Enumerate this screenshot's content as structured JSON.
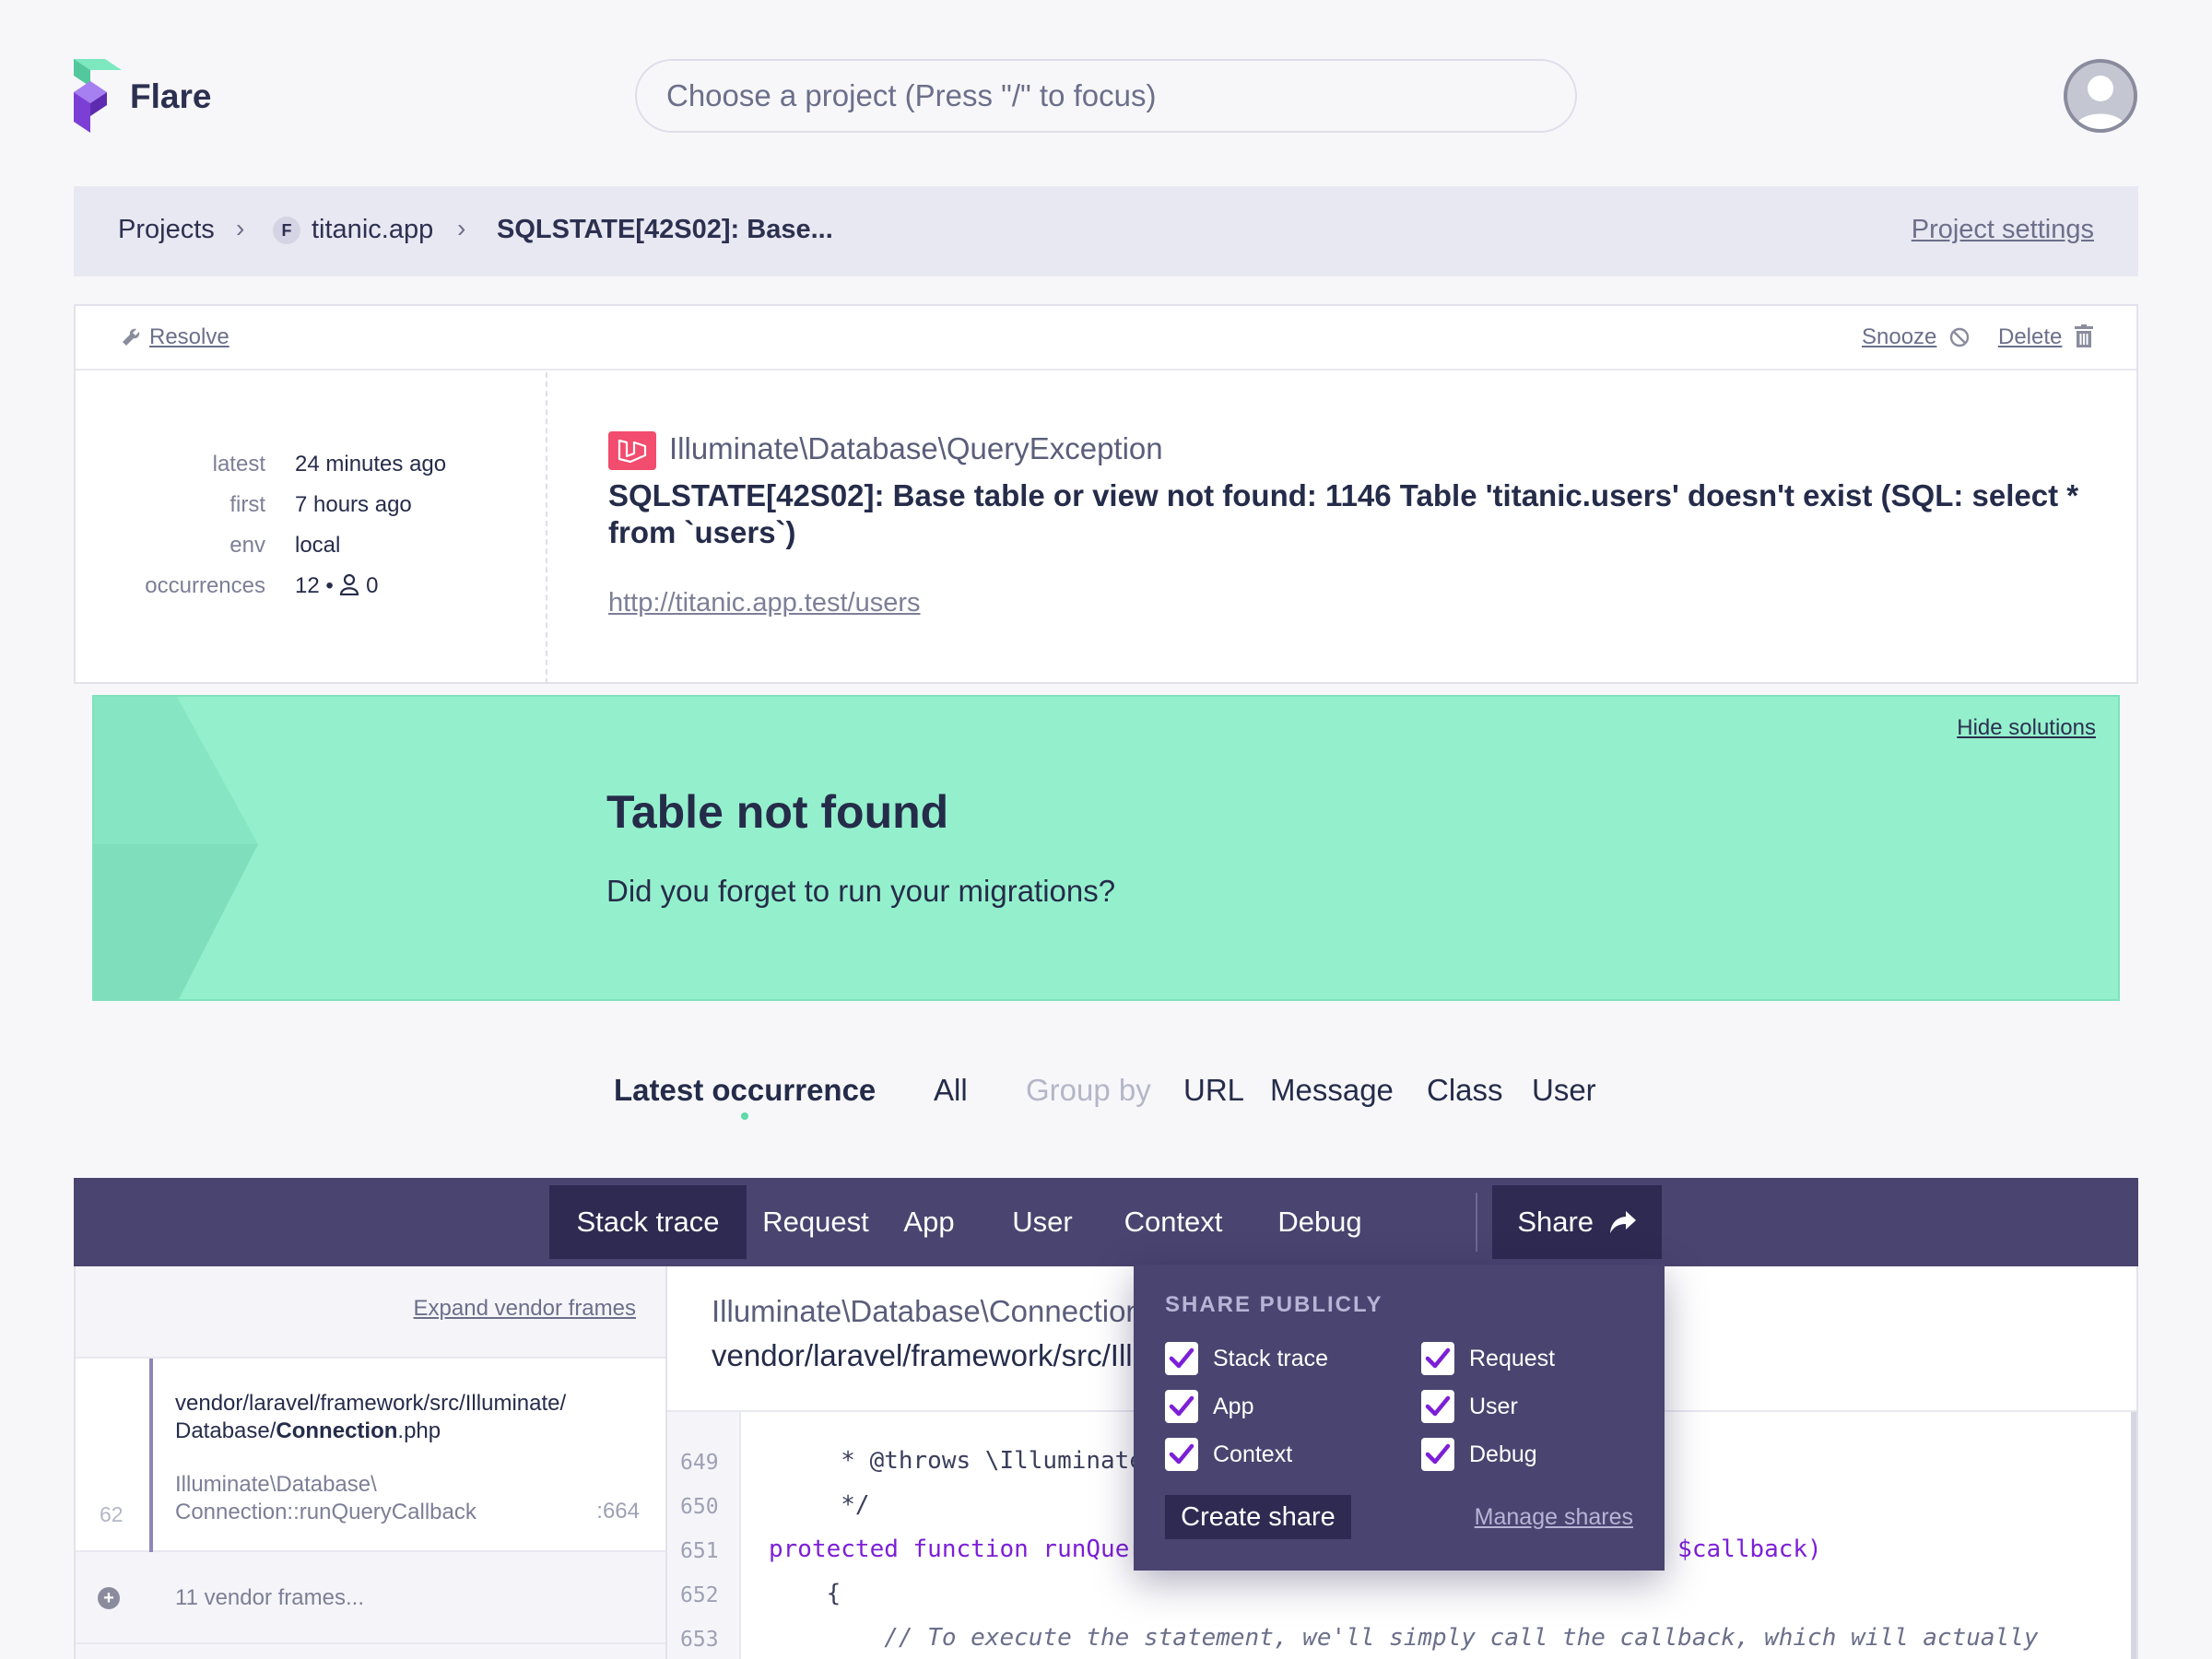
{
  "app": {
    "name": "Flare"
  },
  "search": {
    "placeholder": "Choose a project (Press \"/\" to focus)"
  },
  "breadcrumb": {
    "projects": "Projects",
    "project_badge": "F",
    "project": "titanic.app",
    "error": "SQLSTATE[42S02]: Base...",
    "settings": "Project settings"
  },
  "actions": {
    "resolve": "Resolve",
    "snooze": "Snooze",
    "delete": "Delete"
  },
  "meta": {
    "latest_label": "latest",
    "latest": "24 minutes ago",
    "first_label": "first",
    "first": "7 hours ago",
    "env_label": "env",
    "env": "local",
    "occurrences_label": "occurrences",
    "occurrences": "12",
    "users": "0"
  },
  "exception": {
    "class": "Illuminate\\Database\\QueryException",
    "message": "SQLSTATE[42S02]: Base table or view not found: 1146 Table 'titanic.users' doesn't exist (SQL: select * from `users`)",
    "url": "http://titanic.app.test/users"
  },
  "solution": {
    "hide": "Hide solutions",
    "title": "Table not found",
    "description": "Did you forget to run your migrations?"
  },
  "group_tabs": {
    "latest": "Latest occurrence",
    "all": "All",
    "group_by": "Group by",
    "url": "URL",
    "message": "Message",
    "class": "Class",
    "user": "User"
  },
  "tabs": {
    "stack_trace": "Stack trace",
    "request": "Request",
    "app": "App",
    "user": "User",
    "context": "Context",
    "debug": "Debug",
    "share": "Share"
  },
  "frames": {
    "expand_vendor": "Expand vendor frames",
    "frame1": {
      "number": "62",
      "path_prefix": "vendor/laravel/framework/src/Illuminate/",
      "path_dir": "Database/",
      "path_file": "Connection",
      "path_ext": ".php",
      "method_ns": "Illuminate\\Database\\",
      "method_class": "Connection",
      "method_name": "::runQueryCallback",
      "line": ":664"
    },
    "vendor_collapsed": "11 vendor frames..."
  },
  "code_view": {
    "class": "Illuminate\\Database\\Connection",
    "file": "vendor/laravel/framework/src/Illuminate/Database/Connection.php",
    "lines": [
      {
        "n": "649",
        "text": "     * @throws \\Illuminate\\Database\\QueryException"
      },
      {
        "n": "650",
        "text": "     */"
      },
      {
        "n": "651",
        "kw": "protected function ",
        "text": "runQueryCallback($query, $bindings, Closure $callback)"
      },
      {
        "n": "652",
        "text": "    {"
      },
      {
        "n": "653",
        "comment": "        // To execute the statement, we'll simply call the callback, which will actually"
      }
    ]
  },
  "share": {
    "title": "SHARE PUBLICLY",
    "options": {
      "stack_trace": "Stack trace",
      "request": "Request",
      "app": "App",
      "user": "User",
      "context": "Context",
      "debug": "Debug"
    },
    "checked": true,
    "create": "Create share",
    "manage": "Manage shares"
  },
  "colors": {
    "tab_bar": "#4a4470",
    "tab_active": "#2f2a52",
    "solution_bg": "#94f0cc",
    "laravel_red": "#f24c6e",
    "checkbox_accent": "#7c1fd6"
  }
}
